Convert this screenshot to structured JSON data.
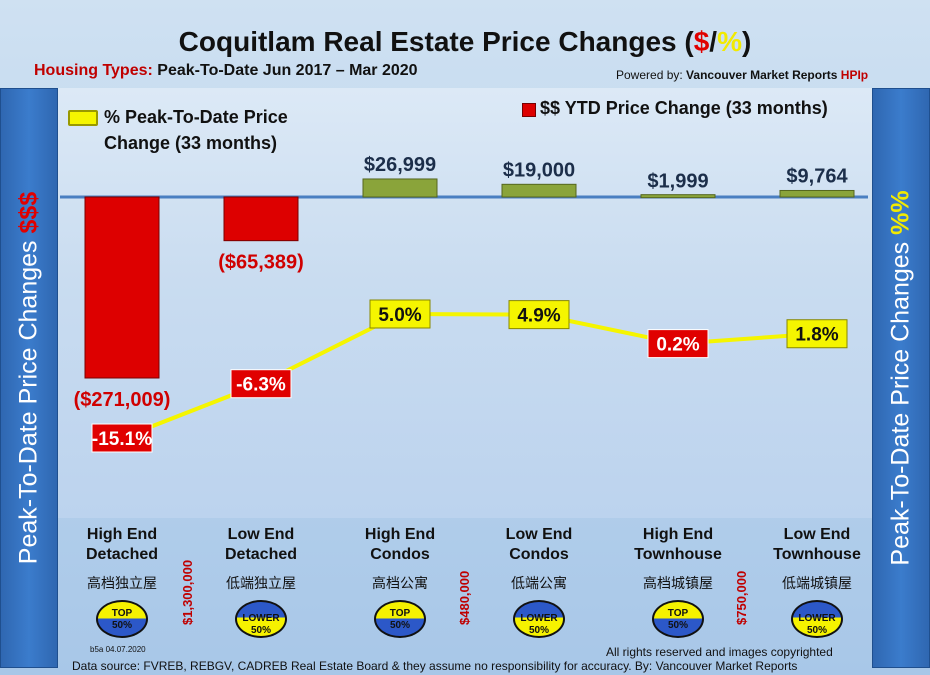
{
  "title": {
    "prefix": "Coquitlam Real Estate Price Changes (",
    "dollar": "$",
    "slash": "/",
    "pct": "%",
    "suffix": ")"
  },
  "subtitle": {
    "label": "Housing Types:",
    "period": "Peak-To-Date Jun 2017 – Mar 2020"
  },
  "powered": {
    "prefix": "Powered by:",
    "name": "Vancouver Market Reports",
    "hpi": "HPIp"
  },
  "sidebar_left": {
    "text": "Peak-To-Date Price Changes",
    "accent": "$$$"
  },
  "sidebar_right": {
    "text": "Peak-To-Date  Price  Changes",
    "accent": "%%"
  },
  "legend": {
    "pct_label": "% Peak-To-Date Price Change (33 months)",
    "ytd_label": "$$ YTD Price Change (33 months)"
  },
  "chart_data": {
    "type": "bar",
    "categories": [
      "High End Detached",
      "Low End Detached",
      "High End Condos",
      "Low End Condos",
      "High End Townhouse",
      "Low End Townhouse"
    ],
    "series": [
      {
        "name": "$$ YTD Price Change (33 months)",
        "type": "bar",
        "values": [
          -271009,
          -65389,
          26999,
          19000,
          1999,
          9764
        ],
        "labels": [
          "($271,009)",
          "($65,389)",
          "$26,999",
          "$19,000",
          "$1,999",
          "$9,764"
        ]
      },
      {
        "name": "% Peak-To-Date Price Change (33 months)",
        "type": "line",
        "values": [
          -15.1,
          -6.3,
          5.0,
          4.9,
          0.2,
          1.8
        ],
        "labels": [
          "-15.1%",
          "-6.3%",
          "5.0%",
          "4.9%",
          "0.2%",
          "1.8%"
        ]
      }
    ],
    "bar_ylim": [
      -271009,
      26999
    ],
    "line_ylim": [
      -17.5,
      7.0
    ],
    "colors": {
      "negative_bar": "#dd0000",
      "positive_bar": "#8aa43a",
      "line": "#f5f500",
      "axis": "#4a7fc1"
    }
  },
  "categories": [
    {
      "l1": "High End",
      "l2": "Detached",
      "cn": "高档独立屋",
      "badge": "top"
    },
    {
      "l1": "Low End",
      "l2": "Detached",
      "cn": "低端独立屋",
      "badge": "low"
    },
    {
      "l1": "High End",
      "l2": "Condos",
      "cn": "高档公寓",
      "badge": "top"
    },
    {
      "l1": "Low End",
      "l2": "Condos",
      "cn": "低端公寓",
      "badge": "low"
    },
    {
      "l1": "High End",
      "l2": "Townhouse",
      "cn": "高档城镇屋",
      "badge": "top"
    },
    {
      "l1": "Low End",
      "l2": "Townhouse",
      "cn": "低端城镇屋",
      "badge": "low"
    }
  ],
  "thresholds": [
    "$1,300,000",
    "$480,000",
    "$750,000"
  ],
  "badges": {
    "top_line1": "TOP",
    "top_line2": "50%",
    "low_line1": "LOWER",
    "low_line2": "50%"
  },
  "footer": {
    "code": "b5a 04.07.2020",
    "rights": "All rights reserved and  images copyrighted",
    "source": "Data source: FVREB, REBGV, CADREB Real Estate Board & they assume no responsibility for accuracy. By: Vancouver Market Reports"
  }
}
